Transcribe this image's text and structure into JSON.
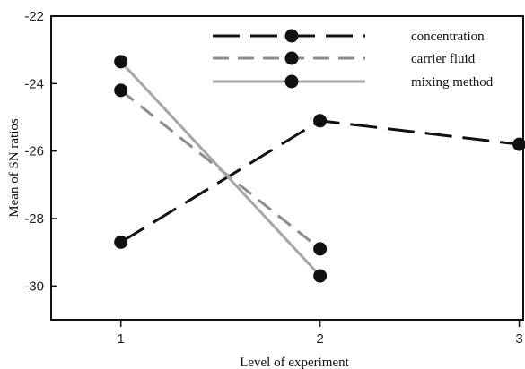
{
  "chart_data": {
    "type": "line",
    "xlabel": "Level of experiment",
    "ylabel": "Mean of SN ratios",
    "xlim": [
      0.65,
      3.02
    ],
    "ylim": [
      -31,
      -22
    ],
    "xticks": [
      1,
      2,
      3
    ],
    "yticks": [
      -22,
      -24,
      -26,
      -28,
      -30
    ],
    "grid": false,
    "legend_position": "top-right",
    "series": [
      {
        "name": "concentration",
        "x": [
          1,
          2,
          3
        ],
        "y": [
          -28.7,
          -25.1,
          -25.8
        ],
        "color": "#111111",
        "dash": "long-dash"
      },
      {
        "name": "carrier fluid",
        "x": [
          1,
          2
        ],
        "y": [
          -24.2,
          -28.9
        ],
        "color": "#8c8c8c",
        "dash": "dash"
      },
      {
        "name": "mixing method",
        "x": [
          1,
          2
        ],
        "y": [
          -23.35,
          -29.7
        ],
        "color": "#a6a6a6",
        "dash": "solid"
      }
    ]
  }
}
